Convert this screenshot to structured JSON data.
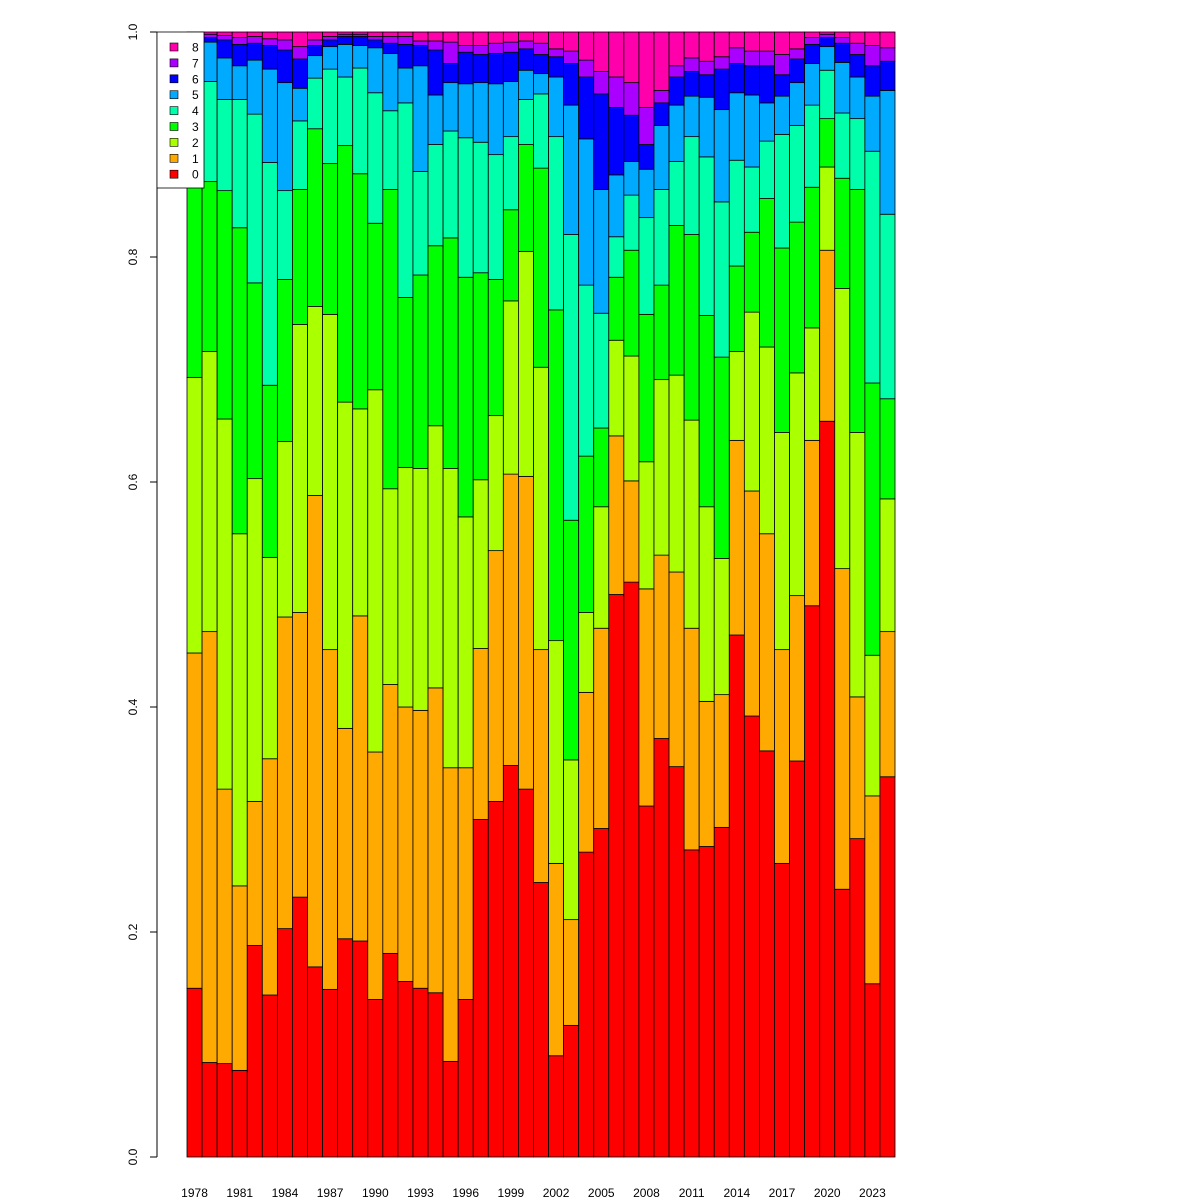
{
  "chart_data": {
    "type": "bar",
    "stacked": true,
    "title": "",
    "xlabel": "",
    "ylabel": "",
    "ylim": [
      0,
      1
    ],
    "yticks": [
      "0.0",
      "0.2",
      "0.4",
      "0.6",
      "0.8",
      "1.0"
    ],
    "grid": false,
    "legend_position": "top-left",
    "categories": [
      1978,
      1979,
      1980,
      1981,
      1982,
      1983,
      1984,
      1985,
      1986,
      1987,
      1988,
      1989,
      1990,
      1991,
      1992,
      1993,
      1994,
      1995,
      1996,
      1997,
      1998,
      1999,
      2000,
      2001,
      2002,
      2003,
      2004,
      2005,
      2006,
      2007,
      2008,
      2009,
      2010,
      2011,
      2012,
      2013,
      2014,
      2015,
      2016,
      2017,
      2018,
      2019,
      2020,
      2021,
      2022,
      2023,
      2024
    ],
    "xtick_labels_shown": [
      "1978",
      "1981",
      "1984",
      "1987",
      "1990",
      "1993",
      "1996",
      "1999",
      "2002",
      "2005",
      "2008",
      "2011",
      "2014",
      "2017",
      "2020",
      "2023"
    ],
    "series": [
      {
        "name": "0",
        "color": "#FF0000",
        "values": [
          0.15,
          0.084,
          0.083,
          0.077,
          0.188,
          0.144,
          0.203,
          0.231,
          0.169,
          0.149,
          0.194,
          0.192,
          0.14,
          0.181,
          0.156,
          0.15,
          0.146,
          0.085,
          0.14,
          0.3,
          0.316,
          0.348,
          0.327,
          0.244,
          0.09,
          0.117,
          0.271,
          0.292,
          0.5,
          0.511,
          0.312,
          0.372,
          0.347,
          0.273,
          0.276,
          0.293,
          0.464,
          0.392,
          0.361,
          0.261,
          0.352,
          0.49,
          0.654,
          0.238,
          0.283,
          0.154,
          0.338
        ]
      },
      {
        "name": "1",
        "color": "#FFAA00",
        "values": [
          0.298,
          0.383,
          0.244,
          0.164,
          0.128,
          0.21,
          0.277,
          0.253,
          0.419,
          0.302,
          0.187,
          0.289,
          0.22,
          0.239,
          0.244,
          0.247,
          0.271,
          0.261,
          0.206,
          0.152,
          0.223,
          0.259,
          0.278,
          0.207,
          0.171,
          0.094,
          0.142,
          0.178,
          0.141,
          0.09,
          0.193,
          0.163,
          0.173,
          0.197,
          0.129,
          0.118,
          0.173,
          0.2,
          0.193,
          0.19,
          0.147,
          0.147,
          0.152,
          0.285,
          0.126,
          0.167,
          0.129
        ]
      },
      {
        "name": "2",
        "color": "#AAFF00",
        "values": [
          0.245,
          0.249,
          0.329,
          0.313,
          0.287,
          0.179,
          0.156,
          0.256,
          0.168,
          0.298,
          0.29,
          0.184,
          0.322,
          0.174,
          0.213,
          0.215,
          0.233,
          0.266,
          0.223,
          0.15,
          0.12,
          0.154,
          0.2,
          0.251,
          0.198,
          0.142,
          0.071,
          0.108,
          0.085,
          0.111,
          0.113,
          0.156,
          0.175,
          0.185,
          0.173,
          0.121,
          0.079,
          0.159,
          0.166,
          0.193,
          0.198,
          0.1,
          0.074,
          0.249,
          0.235,
          0.125,
          0.118
        ]
      },
      {
        "name": "3",
        "color": "#00FF00",
        "values": [
          0.177,
          0.151,
          0.203,
          0.272,
          0.174,
          0.153,
          0.144,
          0.12,
          0.158,
          0.134,
          0.228,
          0.209,
          0.148,
          0.266,
          0.151,
          0.172,
          0.16,
          0.205,
          0.213,
          0.184,
          0.121,
          0.081,
          0.095,
          0.177,
          0.294,
          0.213,
          0.139,
          0.07,
          0.056,
          0.094,
          0.131,
          0.084,
          0.133,
          0.165,
          0.17,
          0.179,
          0.076,
          0.071,
          0.132,
          0.164,
          0.134,
          0.125,
          0.043,
          0.098,
          0.216,
          0.242,
          0.089
        ]
      },
      {
        "name": "4",
        "color": "#00FFAA",
        "values": [
          0.07,
          0.089,
          0.081,
          0.114,
          0.15,
          0.198,
          0.079,
          0.061,
          0.045,
          0.084,
          0.061,
          0.094,
          0.116,
          0.07,
          0.173,
          0.092,
          0.09,
          0.095,
          0.124,
          0.116,
          0.111,
          0.065,
          0.04,
          0.066,
          0.154,
          0.254,
          0.152,
          0.102,
          0.036,
          0.049,
          0.086,
          0.085,
          0.057,
          0.087,
          0.141,
          0.138,
          0.094,
          0.058,
          0.051,
          0.101,
          0.086,
          0.073,
          0.043,
          0.058,
          0.063,
          0.206,
          0.164
        ]
      },
      {
        "name": "5",
        "color": "#00AAFF",
        "values": [
          0.035,
          0.035,
          0.037,
          0.03,
          0.048,
          0.083,
          0.096,
          0.029,
          0.02,
          0.02,
          0.029,
          0.02,
          0.04,
          0.051,
          0.031,
          0.094,
          0.044,
          0.043,
          0.048,
          0.053,
          0.063,
          0.049,
          0.026,
          0.018,
          0.053,
          0.115,
          0.13,
          0.11,
          0.055,
          0.03,
          0.043,
          0.057,
          0.05,
          0.036,
          0.053,
          0.082,
          0.06,
          0.064,
          0.034,
          0.034,
          0.038,
          0.037,
          0.021,
          0.045,
          0.037,
          0.049,
          0.11
        ]
      },
      {
        "name": "6",
        "color": "#0000FF",
        "values": [
          0.015,
          0.004,
          0.016,
          0.019,
          0.015,
          0.021,
          0.029,
          0.026,
          0.009,
          0.006,
          0.007,
          0.008,
          0.007,
          0.009,
          0.021,
          0.018,
          0.04,
          0.017,
          0.028,
          0.025,
          0.027,
          0.026,
          0.019,
          0.017,
          0.018,
          0.037,
          0.055,
          0.085,
          0.06,
          0.041,
          0.022,
          0.02,
          0.025,
          0.022,
          0.02,
          0.036,
          0.026,
          0.026,
          0.033,
          0.019,
          0.021,
          0.017,
          0.008,
          0.017,
          0.02,
          0.027,
          0.026
        ]
      },
      {
        "name": "7",
        "color": "#AA00FF",
        "values": [
          0.006,
          0.003,
          0.004,
          0.006,
          0.006,
          0.006,
          0.009,
          0.011,
          0.005,
          0.003,
          0.002,
          0.002,
          0.003,
          0.006,
          0.007,
          0.004,
          0.008,
          0.019,
          0.006,
          0.008,
          0.009,
          0.009,
          0.007,
          0.01,
          0.007,
          0.011,
          0.015,
          0.02,
          0.027,
          0.029,
          0.033,
          0.011,
          0.01,
          0.012,
          0.012,
          0.011,
          0.014,
          0.013,
          0.013,
          0.018,
          0.009,
          0.006,
          0.003,
          0.005,
          0.01,
          0.018,
          0.012
        ]
      },
      {
        "name": "8",
        "color": "#FF00AA",
        "values": [
          0.004,
          0.002,
          0.003,
          0.005,
          0.004,
          0.006,
          0.007,
          0.013,
          0.007,
          0.004,
          0.002,
          0.002,
          0.004,
          0.004,
          0.004,
          0.008,
          0.008,
          0.009,
          0.012,
          0.012,
          0.01,
          0.009,
          0.008,
          0.01,
          0.015,
          0.017,
          0.025,
          0.035,
          0.04,
          0.045,
          0.067,
          0.052,
          0.03,
          0.023,
          0.026,
          0.022,
          0.014,
          0.017,
          0.017,
          0.02,
          0.015,
          0.005,
          0.002,
          0.005,
          0.01,
          0.012,
          0.014
        ]
      }
    ]
  }
}
